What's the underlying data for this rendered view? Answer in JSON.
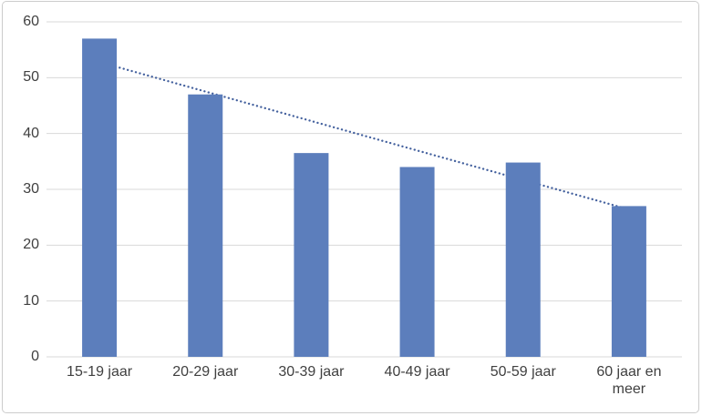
{
  "chart_data": {
    "type": "bar",
    "title": "",
    "xlabel": "",
    "ylabel": "",
    "categories": [
      "15-19 jaar",
      "20-29 jaar",
      "30-39 jaar",
      "40-49 jaar",
      "50-59 jaar",
      "60 jaar en meer"
    ],
    "values": [
      57,
      47,
      36.5,
      34,
      34.8,
      27
    ],
    "ylim": [
      0,
      60
    ],
    "yticks": [
      0,
      10,
      20,
      30,
      40,
      50,
      60
    ],
    "grid": true,
    "legend": "none",
    "bar_color": "#5c7ebc",
    "gridline_color": "#d9d9d9",
    "axis_text_color": "#404040",
    "trendline": {
      "type": "linear",
      "style": "dotted",
      "color": "#44619e",
      "start_value": 52.8,
      "end_value": 26.4,
      "drawn_behind_bars": true
    }
  }
}
